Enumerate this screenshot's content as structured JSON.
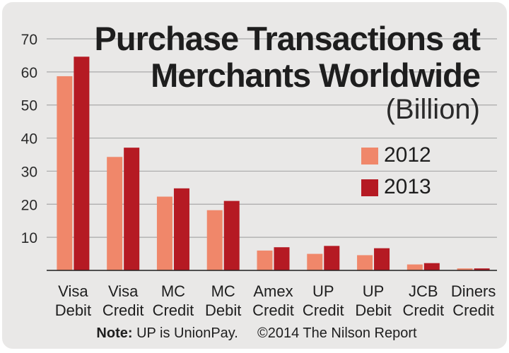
{
  "chart_data": {
    "type": "bar",
    "title_lines": [
      "Purchase Transactions at",
      "Merchants Worldwide"
    ],
    "unit_label": "(Billion)",
    "categories": [
      [
        "Visa",
        "Debit"
      ],
      [
        "Visa",
        "Credit"
      ],
      [
        "MC",
        "Credit"
      ],
      [
        "MC",
        "Debit"
      ],
      [
        "Amex",
        "Credit"
      ],
      [
        "UP",
        "Credit"
      ],
      [
        "UP",
        "Debit"
      ],
      [
        "JCB",
        "Credit"
      ],
      [
        "Diners",
        "Credit"
      ]
    ],
    "series": [
      {
        "name": "2012",
        "color": "#f0876a",
        "values": [
          58.7,
          34.3,
          22.3,
          18.2,
          6.0,
          5.0,
          4.6,
          1.8,
          0.6
        ]
      },
      {
        "name": "2013",
        "color": "#b51a23",
        "values": [
          64.6,
          37.1,
          24.8,
          21.0,
          7.0,
          7.4,
          6.7,
          2.2,
          0.6
        ]
      }
    ],
    "yticks": [
      10,
      20,
      30,
      40,
      50,
      60,
      70
    ],
    "ylim": [
      0,
      70
    ],
    "grid": true,
    "legend_position": "right, below title"
  },
  "note": {
    "label": "Note:",
    "text": "UP is UnionPay.",
    "source": "©2014 The Nilson Report"
  }
}
